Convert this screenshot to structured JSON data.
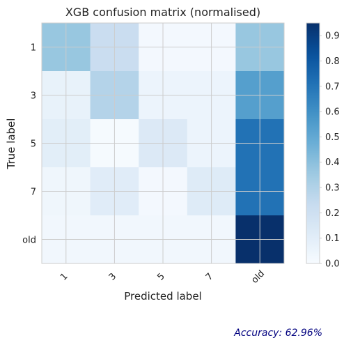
{
  "chart_data": {
    "type": "heatmap",
    "title": "XGB confusion matrix (normalised)",
    "xlabel": "Predicted label",
    "ylabel": "True label",
    "x_categories": [
      "1",
      "3",
      "5",
      "7",
      "old"
    ],
    "y_categories": [
      "1",
      "3",
      "5",
      "7",
      "old"
    ],
    "matrix": [
      [
        0.37,
        0.22,
        0.02,
        0.02,
        0.37
      ],
      [
        0.07,
        0.29,
        0.05,
        0.05,
        0.54
      ],
      [
        0.1,
        0.01,
        0.13,
        0.05,
        0.71
      ],
      [
        0.04,
        0.11,
        0.02,
        0.12,
        0.71
      ],
      [
        0.03,
        0.03,
        0.03,
        0.03,
        0.95
      ]
    ],
    "colormap": "Blues",
    "color_range": [
      0.0,
      0.95
    ],
    "colorbar_ticks": [
      "0.0",
      "0.1",
      "0.2",
      "0.3",
      "0.4",
      "0.5",
      "0.6",
      "0.7",
      "0.8",
      "0.9"
    ],
    "colorbar_tick_values": [
      0.0,
      0.1,
      0.2,
      0.3,
      0.4,
      0.5,
      0.6,
      0.7,
      0.8,
      0.9
    ],
    "grid": true,
    "colorbar_placement": "right"
  },
  "accuracy_text": "Accuracy: 62.96%",
  "colors": {
    "grid": "#cccccc",
    "axes_edge": "#cccccc",
    "text": "#222222",
    "accuracy": "#00007f"
  }
}
